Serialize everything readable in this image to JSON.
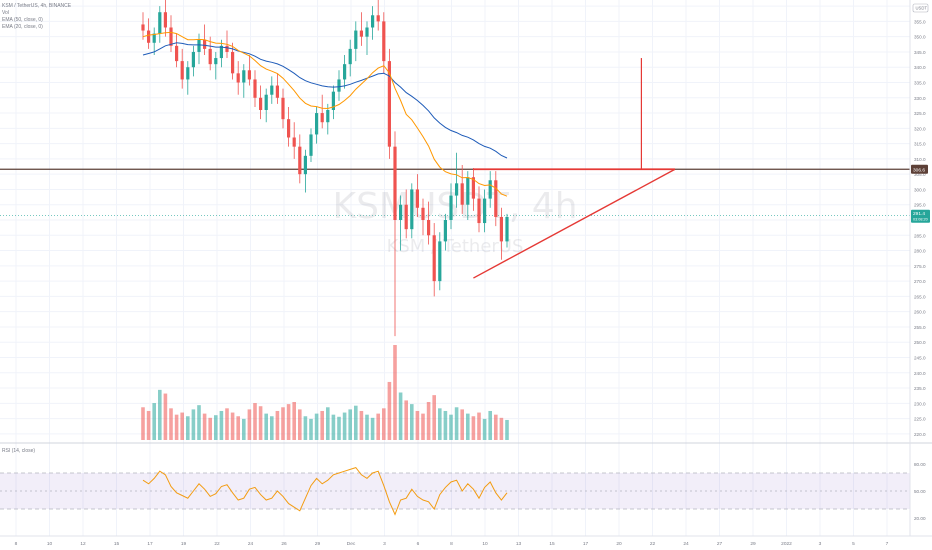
{
  "legend": {
    "symbol": "KSM / TetherUS, 4h, BINANCE",
    "vol": "Vol",
    "ema1": "EMA (50, close, 0)",
    "ema2": "EMA (20, close, 0)"
  },
  "watermark": {
    "big": "KSMUSDT, 4h",
    "small": "KSM / TetherUS"
  },
  "price_axis": {
    "currency": "USDT",
    "ticks": [
      "360.0",
      "355.0",
      "350.0",
      "345.0",
      "340.0",
      "335.0",
      "330.0",
      "325.0",
      "320.0",
      "315.0",
      "310.0",
      "305.0",
      "300.0",
      "295.0",
      "290.0",
      "285.0",
      "280.0",
      "275.0",
      "270.0",
      "265.0",
      "260.0",
      "255.0",
      "250.0",
      "245.0",
      "240.0",
      "235.0",
      "230.0",
      "225.0",
      "220.0"
    ],
    "level_label": "306.6",
    "last_price": "291.4",
    "last_time": "03:08:20"
  },
  "rsi": {
    "label": "RSI (14, close)",
    "ticks": [
      "80.00",
      "50.00",
      "20.00"
    ]
  },
  "time_axis": {
    "labels": [
      "8",
      "10",
      "12",
      "15",
      "17",
      "19",
      "22",
      "24",
      "26",
      "29",
      "Dec",
      "3",
      "6",
      "8",
      "10",
      "13",
      "15",
      "17",
      "20",
      "22",
      "24",
      "27",
      "29",
      "2022",
      "3",
      "5",
      "7"
    ]
  },
  "chart_data": {
    "type": "candlestick",
    "title": "KSM / TetherUS, 4h, BINANCE",
    "price_range": [
      218,
      362
    ],
    "resistance_level": 306.6,
    "last_price": 291.4,
    "ohlc": [
      [
        354,
        358,
        349,
        352
      ],
      [
        352,
        356,
        346,
        348
      ],
      [
        348,
        353,
        344,
        351
      ],
      [
        351,
        360,
        348,
        358
      ],
      [
        358,
        362,
        350,
        353
      ],
      [
        353,
        357,
        345,
        347
      ],
      [
        347,
        351,
        340,
        342
      ],
      [
        342,
        346,
        333,
        336
      ],
      [
        336,
        342,
        331,
        340
      ],
      [
        340,
        347,
        337,
        345
      ],
      [
        345,
        351,
        341,
        349
      ],
      [
        349,
        354,
        344,
        346
      ],
      [
        346,
        350,
        339,
        341
      ],
      [
        341,
        345,
        336,
        343
      ],
      [
        343,
        349,
        340,
        347
      ],
      [
        347,
        352,
        343,
        345
      ],
      [
        345,
        348,
        336,
        338
      ],
      [
        338,
        342,
        331,
        335
      ],
      [
        335,
        341,
        330,
        339
      ],
      [
        339,
        344,
        334,
        336
      ],
      [
        336,
        339,
        327,
        330
      ],
      [
        330,
        334,
        323,
        326
      ],
      [
        326,
        333,
        322,
        331
      ],
      [
        331,
        337,
        328,
        334
      ],
      [
        334,
        338,
        328,
        330
      ],
      [
        330,
        333,
        320,
        323
      ],
      [
        323,
        327,
        314,
        317
      ],
      [
        317,
        322,
        310,
        314
      ],
      [
        314,
        318,
        302,
        305
      ],
      [
        305,
        313,
        299,
        311
      ],
      [
        311,
        320,
        309,
        318
      ],
      [
        318,
        327,
        315,
        325
      ],
      [
        325,
        331,
        320,
        322
      ],
      [
        322,
        328,
        318,
        326
      ],
      [
        326,
        334,
        323,
        332
      ],
      [
        332,
        339,
        329,
        336
      ],
      [
        336,
        344,
        333,
        341
      ],
      [
        341,
        349,
        337,
        346
      ],
      [
        346,
        355,
        342,
        352
      ],
      [
        352,
        358,
        347,
        350
      ],
      [
        350,
        355,
        344,
        353
      ],
      [
        353,
        360,
        349,
        357
      ],
      [
        357,
        362,
        352,
        355
      ],
      [
        355,
        358,
        338,
        342
      ],
      [
        342,
        346,
        310,
        314
      ],
      [
        314,
        319,
        252,
        290
      ],
      [
        290,
        298,
        280,
        295
      ],
      [
        295,
        300,
        284,
        287
      ],
      [
        287,
        302,
        284,
        300
      ],
      [
        300,
        305,
        291,
        294
      ],
      [
        294,
        297,
        285,
        290
      ],
      [
        290,
        296,
        282,
        285
      ],
      [
        285,
        289,
        265,
        270
      ],
      [
        270,
        286,
        267,
        283
      ],
      [
        283,
        292,
        280,
        290
      ],
      [
        290,
        302,
        287,
        298
      ],
      [
        298,
        312,
        294,
        302
      ],
      [
        302,
        308,
        292,
        295
      ],
      [
        295,
        306,
        290,
        304
      ],
      [
        304,
        307,
        293,
        297
      ],
      [
        297,
        301,
        286,
        289
      ],
      [
        289,
        300,
        286,
        297
      ],
      [
        297,
        306,
        294,
        303
      ],
      [
        303,
        306,
        288,
        291
      ],
      [
        291,
        294,
        277,
        283
      ],
      [
        283,
        292,
        281,
        291
      ]
    ],
    "volume": [
      62,
      55,
      70,
      95,
      88,
      60,
      48,
      52,
      45,
      58,
      66,
      50,
      42,
      47,
      55,
      60,
      52,
      45,
      40,
      58,
      70,
      64,
      50,
      45,
      55,
      62,
      68,
      72,
      58,
      45,
      40,
      50,
      55,
      62,
      48,
      44,
      52,
      58,
      65,
      55,
      48,
      42,
      50,
      60,
      110,
      180,
      90,
      75,
      68,
      55,
      50,
      72,
      85,
      60,
      55,
      48,
      62,
      58,
      50,
      45,
      52,
      40,
      55,
      48,
      42,
      38
    ],
    "ema_fast": [
      350,
      350.5,
      350.7,
      351,
      351.3,
      351.4,
      351,
      350,
      349,
      349,
      349.1,
      349,
      348.4,
      347.9,
      347.8,
      347.5,
      346.8,
      345.5,
      344.6,
      343.7,
      342.2,
      340.5,
      339.4,
      338.7,
      337.9,
      336.4,
      334.4,
      332.3,
      329.9,
      328.2,
      327.3,
      327.1,
      326.6,
      326.5,
      327,
      327.8,
      329.1,
      330.7,
      332.8,
      334.5,
      336.2,
      338.2,
      339.7,
      340.5,
      338.1,
      333.1,
      329.1,
      324.6,
      322.8,
      320.1,
      317.3,
      314.2,
      309.9,
      307.3,
      305.8,
      305.1,
      304.8,
      303.8,
      303.9,
      303.3,
      301.9,
      301.3,
      301.5,
      300.4,
      298.5,
      297.8
    ],
    "ema_slow": [
      344,
      344.5,
      345,
      346,
      347,
      347.5,
      348,
      347.8,
      347.4,
      347.3,
      347.3,
      347.2,
      346.9,
      346.6,
      346.6,
      346.4,
      346,
      345.3,
      344.9,
      344.4,
      343.6,
      342.6,
      342,
      341.6,
      341.1,
      340.3,
      339.2,
      338,
      336.6,
      335.6,
      334.9,
      334.4,
      333.9,
      333.6,
      333.5,
      333.6,
      333.9,
      334.4,
      335.1,
      335.7,
      336.4,
      337.1,
      337.8,
      338,
      337.1,
      335,
      333.5,
      331.7,
      330.5,
      329.1,
      327.5,
      325.7,
      323.4,
      321.7,
      320.3,
      319.3,
      318.6,
      317.7,
      317.1,
      316.2,
      315,
      314.1,
      313.5,
      312.5,
      311.1,
      310.3
    ],
    "rsi": [
      62,
      58,
      64,
      72,
      68,
      55,
      48,
      45,
      42,
      50,
      58,
      52,
      44,
      47,
      55,
      57,
      48,
      40,
      42,
      52,
      54,
      46,
      40,
      42,
      50,
      44,
      36,
      32,
      28,
      42,
      56,
      64,
      58,
      62,
      68,
      70,
      72,
      74,
      76,
      68,
      64,
      70,
      72,
      56,
      38,
      24,
      40,
      42,
      52,
      44,
      40,
      38,
      30,
      46,
      54,
      60,
      62,
      50,
      58,
      52,
      42,
      54,
      60,
      48,
      40,
      48
    ],
    "triangle": {
      "apex": [
        30,
        306.6
      ],
      "top": [
        [
          -6,
          306.6
        ],
        [
          30,
          306.6
        ]
      ],
      "bottom": [
        [
          -6,
          271
        ],
        [
          30,
          306.6
        ]
      ],
      "target_line": [
        [
          24,
          306.6
        ],
        [
          24,
          343
        ]
      ]
    }
  }
}
